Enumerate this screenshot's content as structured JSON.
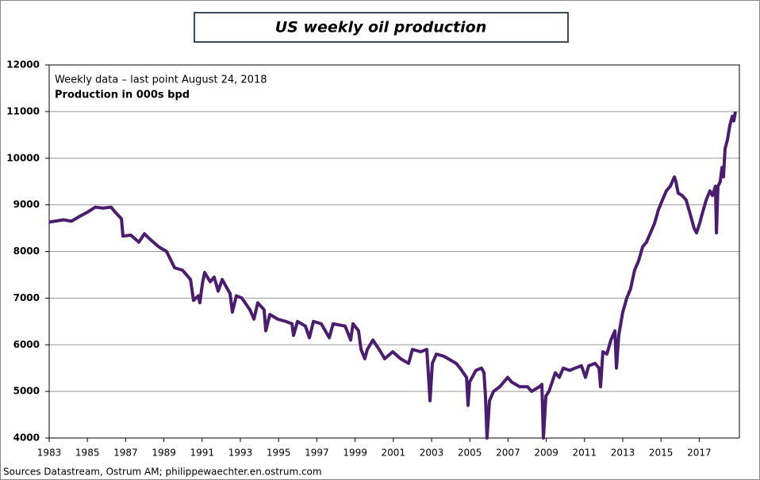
{
  "chart_data": {
    "type": "line",
    "title": "US weekly oil production",
    "annotations": [
      "Weekly data – last point August 24, 2018",
      "Production  in  000s bpd"
    ],
    "source": "Sources Datastream, Ostrum AM; philippewaechter.en.ostrum.com",
    "xlim": [
      1983,
      2019.1
    ],
    "xticks": [
      1983,
      1985,
      1987,
      1989,
      1991,
      1993,
      1995,
      1997,
      1999,
      2001,
      2003,
      2005,
      2007,
      2009,
      2011,
      2013,
      2015,
      2017
    ],
    "ylim": [
      4000,
      12000
    ],
    "yticks": [
      4000,
      5000,
      6000,
      7000,
      8000,
      9000,
      10000,
      11000,
      12000
    ],
    "grid": true,
    "x": [
      1983.0,
      1983.75,
      1984.16,
      1984.58,
      1985.03,
      1985.41,
      1985.82,
      1986.24,
      1986.44,
      1986.78,
      1986.86,
      1987.27,
      1987.69,
      1987.98,
      1988.31,
      1988.73,
      1989.14,
      1989.56,
      1989.97,
      1990.39,
      1990.55,
      1990.8,
      1990.88,
      1991.01,
      1991.13,
      1991.42,
      1991.63,
      1991.84,
      1992.05,
      1992.25,
      1992.46,
      1992.58,
      1992.79,
      1993.08,
      1993.5,
      1993.71,
      1993.91,
      1994.24,
      1994.33,
      1994.54,
      1994.95,
      1995.37,
      1995.7,
      1995.78,
      1995.99,
      1996.4,
      1996.61,
      1996.82,
      1997.23,
      1997.65,
      1997.85,
      1998.48,
      1998.77,
      1998.89,
      1999.18,
      1999.31,
      1999.51,
      1999.64,
      1999.93,
      2000.26,
      2000.55,
      2000.97,
      2001.38,
      2001.8,
      2002.0,
      2002.42,
      2002.75,
      2002.83,
      2002.92,
      2003.04,
      2003.25,
      2003.66,
      2003.87,
      2004.29,
      2004.49,
      2004.83,
      2004.91,
      2004.99,
      2005.32,
      2005.61,
      2005.74,
      2005.82,
      2005.9,
      2006.03,
      2006.24,
      2006.57,
      2006.98,
      2007.19,
      2007.61,
      2008.02,
      2008.23,
      2008.64,
      2008.77,
      2008.85,
      2008.98,
      2009.14,
      2009.39,
      2009.47,
      2009.68,
      2009.89,
      2010.22,
      2010.51,
      2010.84,
      2011.05,
      2011.22,
      2011.55,
      2011.76,
      2011.84,
      2011.96,
      2012.17,
      2012.38,
      2012.59,
      2012.67,
      2012.79,
      2013.0,
      2013.21,
      2013.41,
      2013.62,
      2013.83,
      2014.04,
      2014.24,
      2014.45,
      2014.66,
      2014.87,
      2015.07,
      2015.28,
      2015.49,
      2015.7,
      2015.78,
      2015.9,
      2016.11,
      2016.32,
      2016.53,
      2016.73,
      2016.86,
      2017.02,
      2017.15,
      2017.36,
      2017.56,
      2017.69,
      2017.77,
      2017.85,
      2017.9,
      2017.98,
      2018.1,
      2018.19,
      2018.27,
      2018.35,
      2018.48,
      2018.6,
      2018.73,
      2018.81,
      2018.89
    ],
    "series": [
      {
        "name": "US weekly oil production",
        "color": "#4b1d6e",
        "values": [
          8630,
          8680,
          8650,
          8750,
          8850,
          8950,
          8930,
          8950,
          8850,
          8700,
          8330,
          8350,
          8200,
          8380,
          8250,
          8100,
          8000,
          7650,
          7600,
          7400,
          6950,
          7050,
          6900,
          7300,
          7550,
          7350,
          7450,
          7150,
          7400,
          7250,
          7100,
          6700,
          7050,
          7000,
          6750,
          6550,
          6900,
          6750,
          6300,
          6650,
          6550,
          6500,
          6450,
          6200,
          6500,
          6400,
          6150,
          6500,
          6450,
          6150,
          6450,
          6400,
          6100,
          6450,
          6300,
          5900,
          5700,
          5900,
          6100,
          5900,
          5700,
          5850,
          5700,
          5600,
          5900,
          5850,
          5900,
          5400,
          4800,
          5600,
          5800,
          5750,
          5700,
          5600,
          5500,
          5300,
          4700,
          5200,
          5450,
          5500,
          5400,
          4900,
          4000,
          4800,
          5000,
          5100,
          5300,
          5200,
          5100,
          5100,
          5000,
          5100,
          5150,
          4000,
          4900,
          5000,
          5300,
          5400,
          5300,
          5500,
          5450,
          5500,
          5550,
          5300,
          5550,
          5600,
          5500,
          5100,
          5850,
          5800,
          6100,
          6300,
          5500,
          6200,
          6700,
          7000,
          7200,
          7600,
          7800,
          8100,
          8200,
          8400,
          8600,
          8900,
          9100,
          9300,
          9400,
          9600,
          9500,
          9250,
          9200,
          9100,
          8800,
          8500,
          8400,
          8600,
          8800,
          9100,
          9300,
          9200,
          9300,
          9400,
          8400,
          9400,
          9500,
          9800,
          9600,
          10200,
          10400,
          10700,
          10900,
          10800,
          11000
        ]
      }
    ]
  }
}
